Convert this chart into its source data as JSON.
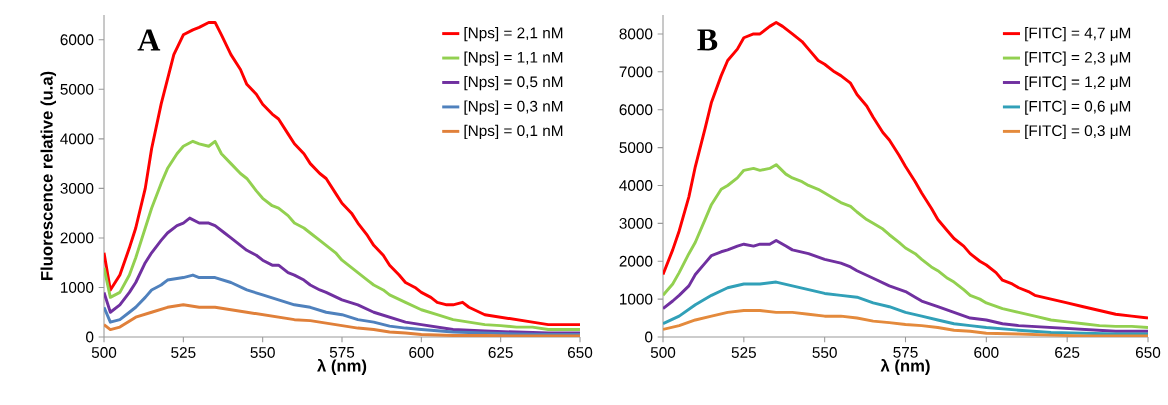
{
  "chart_data": [
    {
      "type": "line",
      "xlabel": "λ (nm)",
      "ylabel": "Fluorescence relative (u.a)",
      "annotations": [
        "A"
      ],
      "xlim": [
        500,
        650
      ],
      "ylim": [
        0,
        6500
      ],
      "xticks": [
        500,
        525,
        550,
        575,
        600,
        625,
        650
      ],
      "yticks": [
        0,
        1000,
        2000,
        3000,
        4000,
        5000,
        6000
      ],
      "legend": "top right",
      "series": [
        {
          "name": "[Nps] = 2,1 nM",
          "color": "#ff0000",
          "x": [
            500,
            502,
            505,
            508,
            510,
            513,
            515,
            518,
            520,
            522,
            525,
            528,
            530,
            533,
            535,
            537,
            540,
            543,
            545,
            548,
            550,
            553,
            555,
            558,
            560,
            563,
            565,
            568,
            570,
            573,
            575,
            578,
            580,
            583,
            585,
            588,
            590,
            593,
            595,
            598,
            600,
            603,
            605,
            608,
            610,
            613,
            615,
            620,
            625,
            630,
            635,
            640,
            645,
            650
          ],
          "values": [
            1700,
            950,
            1250,
            1800,
            2200,
            3000,
            3800,
            4700,
            5200,
            5700,
            6100,
            6200,
            6250,
            6350,
            6350,
            6100,
            5700,
            5400,
            5100,
            4900,
            4700,
            4500,
            4400,
            4100,
            3900,
            3700,
            3500,
            3300,
            3200,
            2900,
            2700,
            2500,
            2300,
            2050,
            1850,
            1650,
            1450,
            1250,
            1100,
            1000,
            900,
            800,
            700,
            650,
            650,
            700,
            600,
            450,
            400,
            350,
            300,
            250,
            250,
            250
          ]
        },
        {
          "name": "[Nps] = 1,1 nM",
          "color": "#92d050",
          "x": [
            500,
            502,
            505,
            508,
            510,
            513,
            515,
            518,
            520,
            523,
            525,
            528,
            530,
            533,
            535,
            537,
            540,
            543,
            545,
            548,
            550,
            553,
            555,
            558,
            560,
            563,
            565,
            568,
            570,
            573,
            575,
            578,
            580,
            583,
            585,
            588,
            590,
            595,
            600,
            605,
            610,
            615,
            620,
            625,
            630,
            635,
            640,
            645,
            650
          ],
          "values": [
            1400,
            800,
            900,
            1250,
            1600,
            2200,
            2600,
            3100,
            3400,
            3700,
            3850,
            3950,
            3900,
            3850,
            3950,
            3700,
            3500,
            3300,
            3200,
            2950,
            2800,
            2650,
            2600,
            2450,
            2300,
            2200,
            2100,
            1950,
            1850,
            1700,
            1550,
            1400,
            1300,
            1150,
            1050,
            950,
            850,
            700,
            550,
            450,
            350,
            300,
            250,
            230,
            200,
            200,
            150,
            150,
            150
          ]
        },
        {
          "name": "[Nps] = 0,5 nM",
          "color": "#7030a0",
          "x": [
            500,
            502,
            505,
            508,
            510,
            513,
            515,
            518,
            520,
            523,
            525,
            527,
            530,
            533,
            535,
            538,
            540,
            543,
            545,
            548,
            550,
            553,
            555,
            558,
            560,
            563,
            565,
            568,
            570,
            575,
            580,
            585,
            590,
            595,
            600,
            605,
            610,
            620,
            630,
            640,
            650
          ],
          "values": [
            900,
            500,
            650,
            900,
            1100,
            1500,
            1700,
            1950,
            2100,
            2250,
            2300,
            2400,
            2300,
            2300,
            2250,
            2100,
            2000,
            1850,
            1750,
            1650,
            1550,
            1450,
            1450,
            1300,
            1250,
            1150,
            1050,
            950,
            900,
            750,
            650,
            500,
            400,
            300,
            250,
            200,
            150,
            120,
            100,
            80,
            80
          ]
        },
        {
          "name": "[Nps] = 0,3 nM",
          "color": "#4f81bd",
          "x": [
            500,
            502,
            505,
            508,
            510,
            513,
            515,
            518,
            520,
            525,
            528,
            530,
            535,
            540,
            545,
            550,
            555,
            560,
            565,
            570,
            575,
            580,
            585,
            590,
            595,
            600,
            610,
            620,
            630,
            640,
            650
          ],
          "values": [
            600,
            300,
            350,
            500,
            600,
            800,
            950,
            1050,
            1150,
            1200,
            1250,
            1200,
            1200,
            1100,
            950,
            850,
            750,
            650,
            600,
            500,
            450,
            350,
            300,
            220,
            180,
            150,
            100,
            80,
            60,
            50,
            50
          ]
        },
        {
          "name": "[Nps] = 0,1 nM",
          "color": "#e0803a",
          "x": [
            500,
            502,
            505,
            510,
            515,
            520,
            525,
            530,
            535,
            540,
            545,
            550,
            555,
            560,
            565,
            570,
            575,
            580,
            585,
            590,
            595,
            600,
            610,
            620,
            630,
            640,
            650
          ],
          "values": [
            250,
            150,
            200,
            400,
            500,
            600,
            650,
            600,
            600,
            550,
            500,
            450,
            400,
            350,
            330,
            280,
            230,
            180,
            150,
            100,
            80,
            50,
            30,
            30,
            20,
            20,
            20
          ]
        }
      ]
    },
    {
      "type": "line",
      "xlabel": "λ (nm)",
      "annotations": [
        "B"
      ],
      "xlim": [
        500,
        650
      ],
      "ylim": [
        0,
        8500
      ],
      "xticks": [
        500,
        525,
        550,
        575,
        600,
        625,
        650
      ],
      "yticks": [
        0,
        1000,
        2000,
        3000,
        4000,
        5000,
        6000,
        7000,
        8000
      ],
      "legend": "top right",
      "series": [
        {
          "name": "[FITC] = 4,7 μM",
          "color": "#ff0000",
          "x": [
            500,
            503,
            505,
            508,
            510,
            513,
            515,
            518,
            520,
            523,
            525,
            528,
            530,
            533,
            535,
            537,
            540,
            543,
            545,
            548,
            550,
            553,
            555,
            558,
            560,
            563,
            565,
            568,
            570,
            573,
            575,
            578,
            580,
            583,
            585,
            588,
            590,
            593,
            595,
            598,
            600,
            603,
            605,
            608,
            610,
            613,
            615,
            620,
            625,
            630,
            635,
            640,
            645,
            650
          ],
          "values": [
            1650,
            2300,
            2800,
            3700,
            4500,
            5500,
            6200,
            6900,
            7300,
            7600,
            7900,
            8000,
            8000,
            8200,
            8300,
            8200,
            8000,
            7800,
            7600,
            7300,
            7200,
            7000,
            6900,
            6700,
            6400,
            6100,
            5800,
            5400,
            5200,
            4800,
            4500,
            4100,
            3800,
            3400,
            3100,
            2800,
            2600,
            2400,
            2200,
            2000,
            1900,
            1700,
            1500,
            1400,
            1300,
            1200,
            1100,
            1000,
            900,
            800,
            700,
            600,
            550,
            500
          ]
        },
        {
          "name": "[FITC] = 2,3 μM",
          "color": "#92d050",
          "x": [
            500,
            503,
            505,
            508,
            510,
            513,
            515,
            518,
            520,
            523,
            525,
            528,
            530,
            533,
            535,
            538,
            540,
            543,
            545,
            548,
            550,
            553,
            555,
            558,
            560,
            563,
            565,
            568,
            570,
            573,
            575,
            578,
            580,
            583,
            585,
            588,
            590,
            593,
            595,
            598,
            600,
            605,
            610,
            615,
            620,
            625,
            630,
            635,
            640,
            645,
            650
          ],
          "values": [
            1100,
            1400,
            1700,
            2200,
            2500,
            3100,
            3500,
            3900,
            4000,
            4200,
            4400,
            4450,
            4400,
            4450,
            4550,
            4300,
            4200,
            4100,
            4000,
            3900,
            3800,
            3650,
            3550,
            3450,
            3300,
            3100,
            3000,
            2850,
            2700,
            2500,
            2350,
            2200,
            2050,
            1850,
            1750,
            1550,
            1450,
            1250,
            1100,
            1000,
            900,
            750,
            650,
            550,
            450,
            400,
            350,
            300,
            280,
            280,
            250
          ]
        },
        {
          "name": "[FITC] = 1,2 μM",
          "color": "#7030a0",
          "x": [
            500,
            503,
            505,
            508,
            510,
            513,
            515,
            518,
            520,
            523,
            525,
            528,
            530,
            533,
            535,
            538,
            540,
            545,
            550,
            555,
            558,
            560,
            565,
            570,
            575,
            578,
            580,
            585,
            590,
            595,
            600,
            605,
            610,
            620,
            630,
            640,
            650
          ],
          "values": [
            750,
            950,
            1100,
            1350,
            1650,
            1950,
            2150,
            2250,
            2300,
            2400,
            2450,
            2400,
            2450,
            2450,
            2550,
            2400,
            2300,
            2200,
            2050,
            1950,
            1850,
            1750,
            1550,
            1350,
            1200,
            1050,
            950,
            800,
            650,
            500,
            450,
            350,
            300,
            250,
            200,
            150,
            150
          ]
        },
        {
          "name": "[FITC] = 0,6 μM",
          "color": "#31a0b8",
          "x": [
            500,
            505,
            510,
            515,
            520,
            525,
            530,
            535,
            540,
            545,
            550,
            555,
            560,
            565,
            570,
            575,
            580,
            585,
            590,
            595,
            600,
            610,
            620,
            630,
            640,
            650
          ],
          "values": [
            350,
            550,
            850,
            1100,
            1300,
            1400,
            1400,
            1450,
            1350,
            1250,
            1150,
            1100,
            1050,
            900,
            800,
            650,
            550,
            450,
            350,
            300,
            250,
            180,
            120,
            100,
            80,
            80
          ]
        },
        {
          "name": "[FITC] = 0,3 μM",
          "color": "#e48a3c",
          "x": [
            500,
            505,
            510,
            515,
            520,
            525,
            530,
            535,
            540,
            545,
            550,
            555,
            560,
            565,
            570,
            575,
            580,
            585,
            590,
            595,
            600,
            610,
            620,
            630,
            640,
            650
          ],
          "values": [
            200,
            300,
            450,
            550,
            650,
            700,
            700,
            650,
            650,
            600,
            550,
            550,
            500,
            420,
            380,
            330,
            300,
            250,
            180,
            150,
            100,
            80,
            50,
            30,
            30,
            30
          ]
        }
      ]
    }
  ]
}
